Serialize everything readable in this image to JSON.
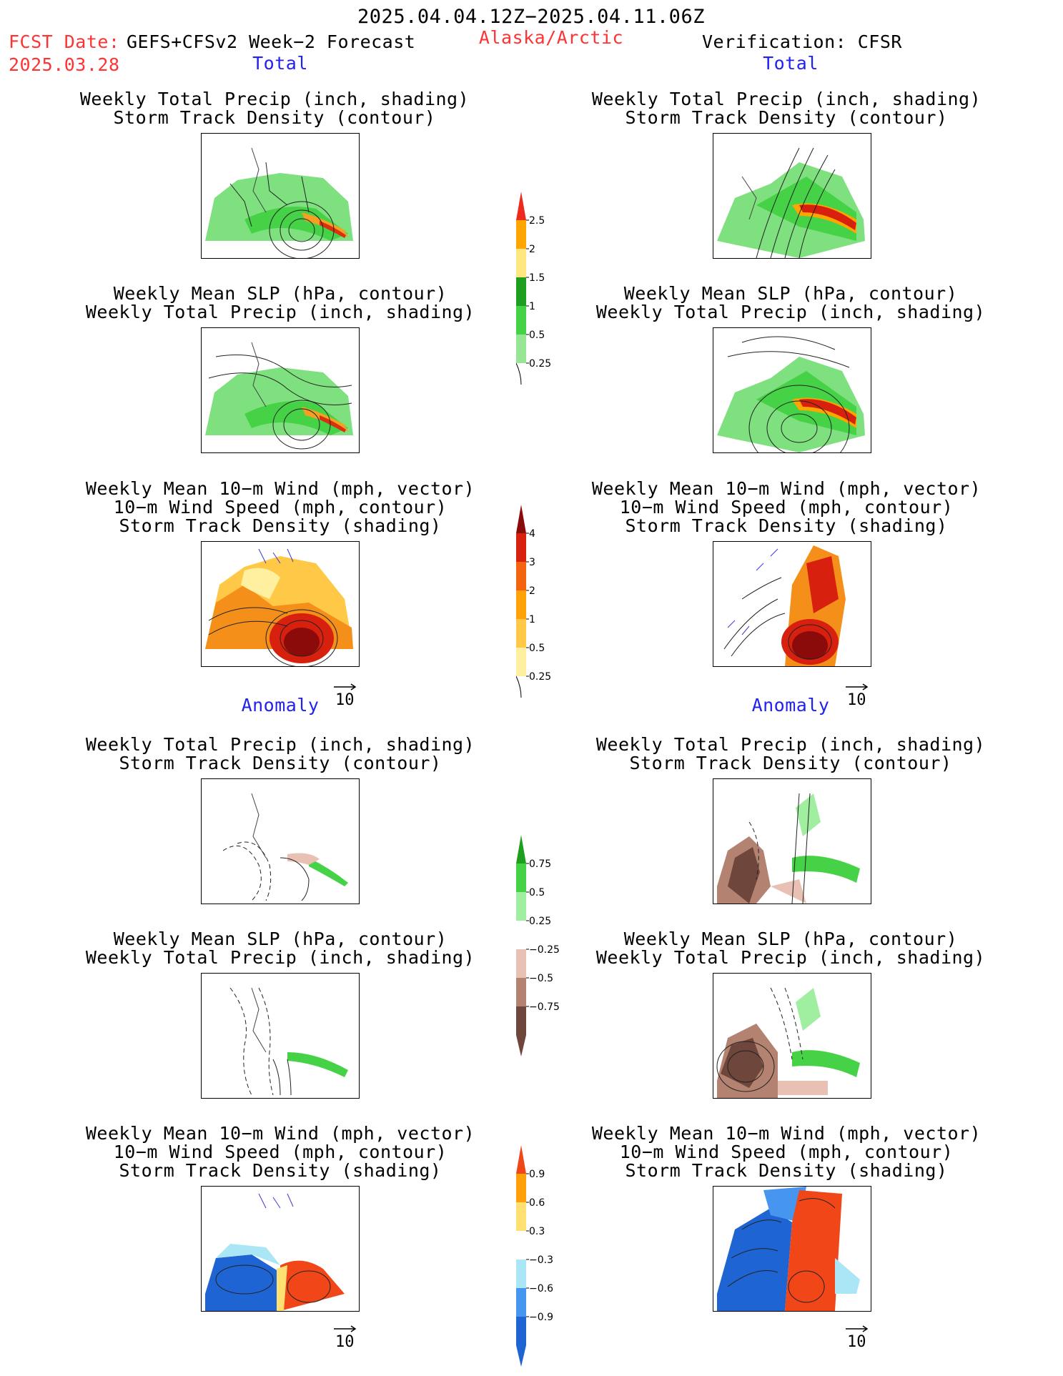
{
  "header": {
    "date_range": "2025.04.04.12Z−2025.04.11.06Z",
    "fcst_label": "FCST Date:",
    "model": "GEFS+CFSv2 Week−2 Forecast",
    "fcst_date": "2025.03.28",
    "region": "Alaska/Arctic",
    "verification": "Verification: CFSR"
  },
  "sections": {
    "total_left": "Total",
    "total_right": "Total",
    "anom_left": "Anomaly",
    "anom_right": "Anomaly"
  },
  "titles": {
    "precip_storm": [
      "Weekly Total Precip (inch, shading)",
      "Storm Track Density (contour)"
    ],
    "slp_precip": [
      "Weekly Mean SLP (hPa, contour)",
      "Weekly Total Precip (inch, shading)"
    ],
    "wind": [
      "Weekly Mean 10−m Wind (mph, vector)",
      "10−m Wind Speed (mph, contour)",
      "Storm Track Density (shading)"
    ]
  },
  "vector_ref": "10",
  "colorbars": {
    "precip_total": {
      "labels": [
        "2.5",
        "2",
        "1.5",
        "1",
        "0.5",
        "0.25"
      ],
      "colors": [
        "#ee2a1e",
        "#ffa500",
        "#ffe680",
        "#1e9e1e",
        "#46d246",
        "#96e696"
      ]
    },
    "storm_total": {
      "labels": [
        "4",
        "3",
        "2",
        "1",
        "0.5",
        "0.25"
      ],
      "colors": [
        "#8b0a0a",
        "#d8200e",
        "#f4640e",
        "#ffa20a",
        "#ffc846",
        "#fff0a0"
      ]
    },
    "precip_anom": {
      "labels": [
        "0.75",
        "0.5",
        "0.25",
        "−0.25",
        "−0.5",
        "−0.75"
      ],
      "colors": [
        "#1ea01e",
        "#46d246",
        "#a0eea0",
        "#ffffff",
        "#e8c0b4",
        "#b48270",
        "#6e463c"
      ]
    },
    "storm_anom": {
      "labels": [
        "0.9",
        "0.6",
        "0.3",
        "−0.3",
        "−0.6",
        "−0.9"
      ],
      "colors": [
        "#f04618",
        "#ffa00a",
        "#ffe070",
        "#ffffff",
        "#aae6f5",
        "#4696f0",
        "#1e64d2"
      ]
    }
  },
  "colors": {
    "red_text": "#ff3333",
    "blue_text": "#2222ee"
  }
}
